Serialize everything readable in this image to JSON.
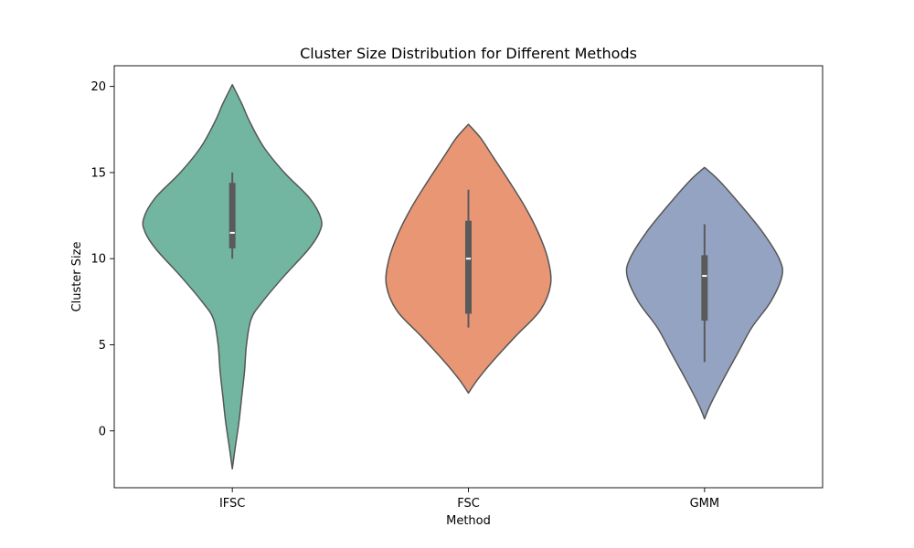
{
  "chart_data": {
    "type": "violin",
    "title": "Cluster Size Distribution for Different Methods",
    "xlabel": "Method",
    "ylabel": "Cluster Size",
    "categories": [
      "IFSC",
      "FSC",
      "GMM"
    ],
    "ylim": [
      -3.3,
      21.2
    ],
    "yticks": [
      0,
      5,
      10,
      15,
      20
    ],
    "grid": false,
    "colors": {
      "IFSC": "#72b6a1",
      "FSC": "#e99675",
      "GMM": "#95a3c3",
      "outline": "#555555",
      "box": "#5a5a5a",
      "median": "#ffffff"
    },
    "violins": [
      {
        "name": "IFSC",
        "min": 10.0,
        "q1": 10.6,
        "median": 11.5,
        "q3": 14.4,
        "max": 15.0,
        "kde_min": -2.2,
        "kde_max": 20.1,
        "profile": [
          [
            -2.2,
            0.0
          ],
          [
            -1.0,
            0.03
          ],
          [
            0.5,
            0.07
          ],
          [
            2.0,
            0.1
          ],
          [
            3.5,
            0.13
          ],
          [
            5.0,
            0.15
          ],
          [
            6.5,
            0.2
          ],
          [
            7.5,
            0.32
          ],
          [
            9.0,
            0.55
          ],
          [
            10.5,
            0.8
          ],
          [
            11.5,
            0.92
          ],
          [
            12.3,
            0.94
          ],
          [
            13.5,
            0.82
          ],
          [
            15.0,
            0.55
          ],
          [
            16.5,
            0.33
          ],
          [
            18.0,
            0.18
          ],
          [
            19.0,
            0.1
          ],
          [
            20.1,
            0.0
          ]
        ]
      },
      {
        "name": "FSC",
        "min": 6.0,
        "q1": 6.8,
        "median": 10.0,
        "q3": 12.2,
        "max": 14.0,
        "kde_min": 2.2,
        "kde_max": 17.8,
        "profile": [
          [
            2.2,
            0.0
          ],
          [
            3.0,
            0.1
          ],
          [
            4.0,
            0.25
          ],
          [
            5.5,
            0.5
          ],
          [
            7.0,
            0.76
          ],
          [
            8.5,
            0.87
          ],
          [
            10.0,
            0.84
          ],
          [
            11.5,
            0.74
          ],
          [
            13.0,
            0.6
          ],
          [
            14.5,
            0.43
          ],
          [
            16.0,
            0.25
          ],
          [
            17.0,
            0.13
          ],
          [
            17.8,
            0.0
          ]
        ]
      },
      {
        "name": "GMM",
        "min": 4.0,
        "q1": 6.4,
        "median": 9.0,
        "q3": 10.2,
        "max": 12.0,
        "kde_min": 0.7,
        "kde_max": 15.3,
        "profile": [
          [
            0.7,
            0.0
          ],
          [
            1.5,
            0.06
          ],
          [
            3.0,
            0.2
          ],
          [
            4.5,
            0.35
          ],
          [
            6.0,
            0.5
          ],
          [
            7.5,
            0.7
          ],
          [
            9.0,
            0.82
          ],
          [
            10.0,
            0.79
          ],
          [
            11.5,
            0.62
          ],
          [
            13.0,
            0.4
          ],
          [
            14.5,
            0.16
          ],
          [
            15.3,
            0.0
          ]
        ]
      }
    ]
  }
}
